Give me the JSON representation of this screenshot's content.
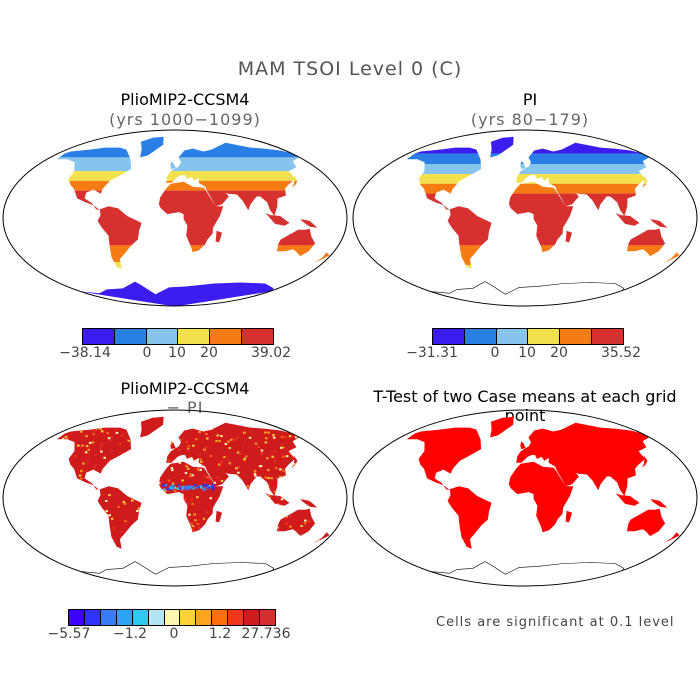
{
  "title": "MAM TSOI Level 0 (C)",
  "panels": [
    {
      "title": "PlioMIP2-CCSM4",
      "subtitle": "(yrs 1000−1099)",
      "palette": [
        "#3b1df0",
        "#2a7fe6",
        "#86c4ee",
        "#f2e04c",
        "#f57b14",
        "#d6312f"
      ]
    },
    {
      "title": "PI",
      "subtitle": "(yrs 80−179)",
      "palette": [
        "#3b1df0",
        "#2a7fe6",
        "#86c4ee",
        "#f2e04c",
        "#f57b14",
        "#d6312f"
      ]
    },
    {
      "title": "PlioMIP2-CCSM4",
      "subtitle": "− PI",
      "palette": [
        "#3f00ff",
        "#2f33ff",
        "#3b7bf5",
        "#2ba4f5",
        "#2ec8f0",
        "#b3e6f2",
        "#fff7b0",
        "#ffd23a",
        "#ffa51d",
        "#ff6f11",
        "#f0371b",
        "#cf1b1b",
        "#d42e2e"
      ]
    },
    {
      "title": "T-Test of two Case means at each grid point",
      "subtitle": "",
      "palette": [
        "#ff0000"
      ]
    }
  ],
  "colorbars": [
    {
      "ticks": [
        "−38.14",
        "0",
        "10",
        "20",
        "39.02"
      ]
    },
    {
      "ticks": [
        "−31.31",
        "0",
        "10",
        "20",
        "35.52"
      ]
    },
    {
      "ticks": [
        "−5.57",
        "−1.2",
        "0",
        "1.2",
        "27.736"
      ]
    }
  ],
  "footnote": "Cells are significant at 0.1 level"
}
